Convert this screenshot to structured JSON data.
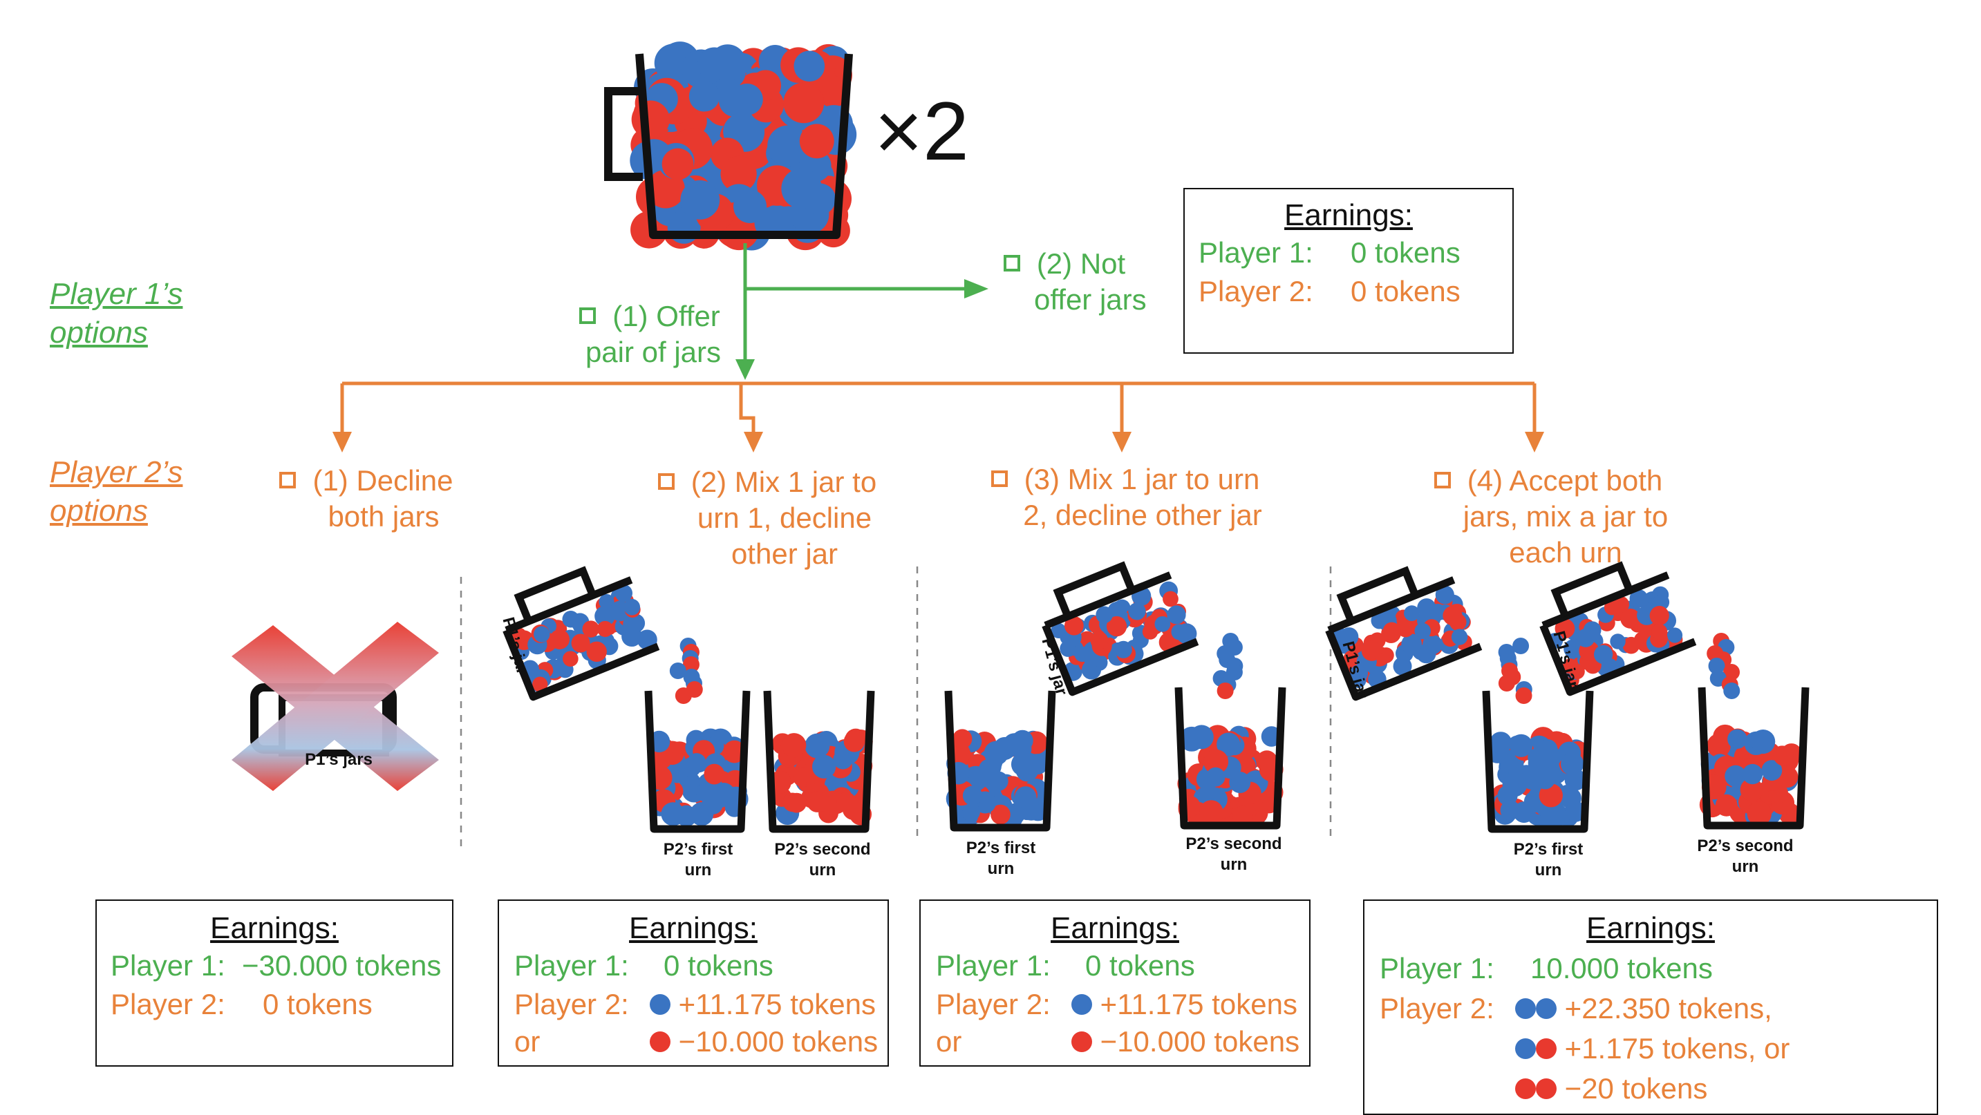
{
  "multiplier": "×2",
  "player1_options_label": "Player 1’s options",
  "player2_options_label": "Player 2’s options",
  "p1_choices": {
    "offer": "(1) Offer pair of jars",
    "offer_line1": "(1) Offer",
    "offer_line2": "pair of jars",
    "not_offer_line1": "(2) Not",
    "not_offer_line2": "offer jars"
  },
  "p2_choices": [
    {
      "line1": "(1) Decline",
      "line2": "both jars",
      "line3": ""
    },
    {
      "line1": "(2) Mix 1 jar to",
      "line2": "urn 1, decline",
      "line3": "other jar"
    },
    {
      "line1": "(3) Mix 1 jar to urn",
      "line2": "2, decline other jar",
      "line3": ""
    },
    {
      "line1": "(4) Accept both",
      "line2": "jars, mix a jar to",
      "line3": "each urn"
    }
  ],
  "earnings_title": "Earnings:",
  "earnings_top": {
    "p1_label": "Player 1:",
    "p1_value": "0 tokens",
    "p2_label": "Player 2:",
    "p2_value": "0 tokens"
  },
  "earnings": [
    {
      "p1_label": "Player 1:",
      "p1_value": "−30.000 tokens",
      "p2_label": "Player 2:",
      "p2_value": "0 tokens"
    },
    {
      "p1_label": "Player 1:",
      "p1_value": "0 tokens",
      "p2_label": "Player 2:",
      "p2_value": "+11.175 tokens",
      "or_label": "or",
      "or_value": "−10.000 tokens"
    },
    {
      "p1_label": "Player 1:",
      "p1_value": "0 tokens",
      "p2_label": "Player 2:",
      "p2_value": "+11.175 tokens",
      "or_label": "or",
      "or_value": "−10.000 tokens"
    },
    {
      "p1_label": "Player 1:",
      "p1_value": "10.000 tokens",
      "p2_label": "Player 2:",
      "p2_value1": "+22.350 tokens,",
      "p2_value2": "+1.175 tokens, or",
      "p2_value3": "−20 tokens"
    }
  ],
  "jar_labels": {
    "p1_jars": "P1’s jars",
    "p1_jar": "P1’s jar",
    "p2_first_urn_line1": "P2’s first",
    "p2_first_urn_line2": "urn",
    "p2_second_urn_line1": "P2’s second",
    "p2_second_urn_line2": "urn"
  },
  "colors": {
    "player1": "#4caf50",
    "player2": "#e8823a",
    "blue_ball": "#3a74c2",
    "red_ball": "#e8392e"
  }
}
